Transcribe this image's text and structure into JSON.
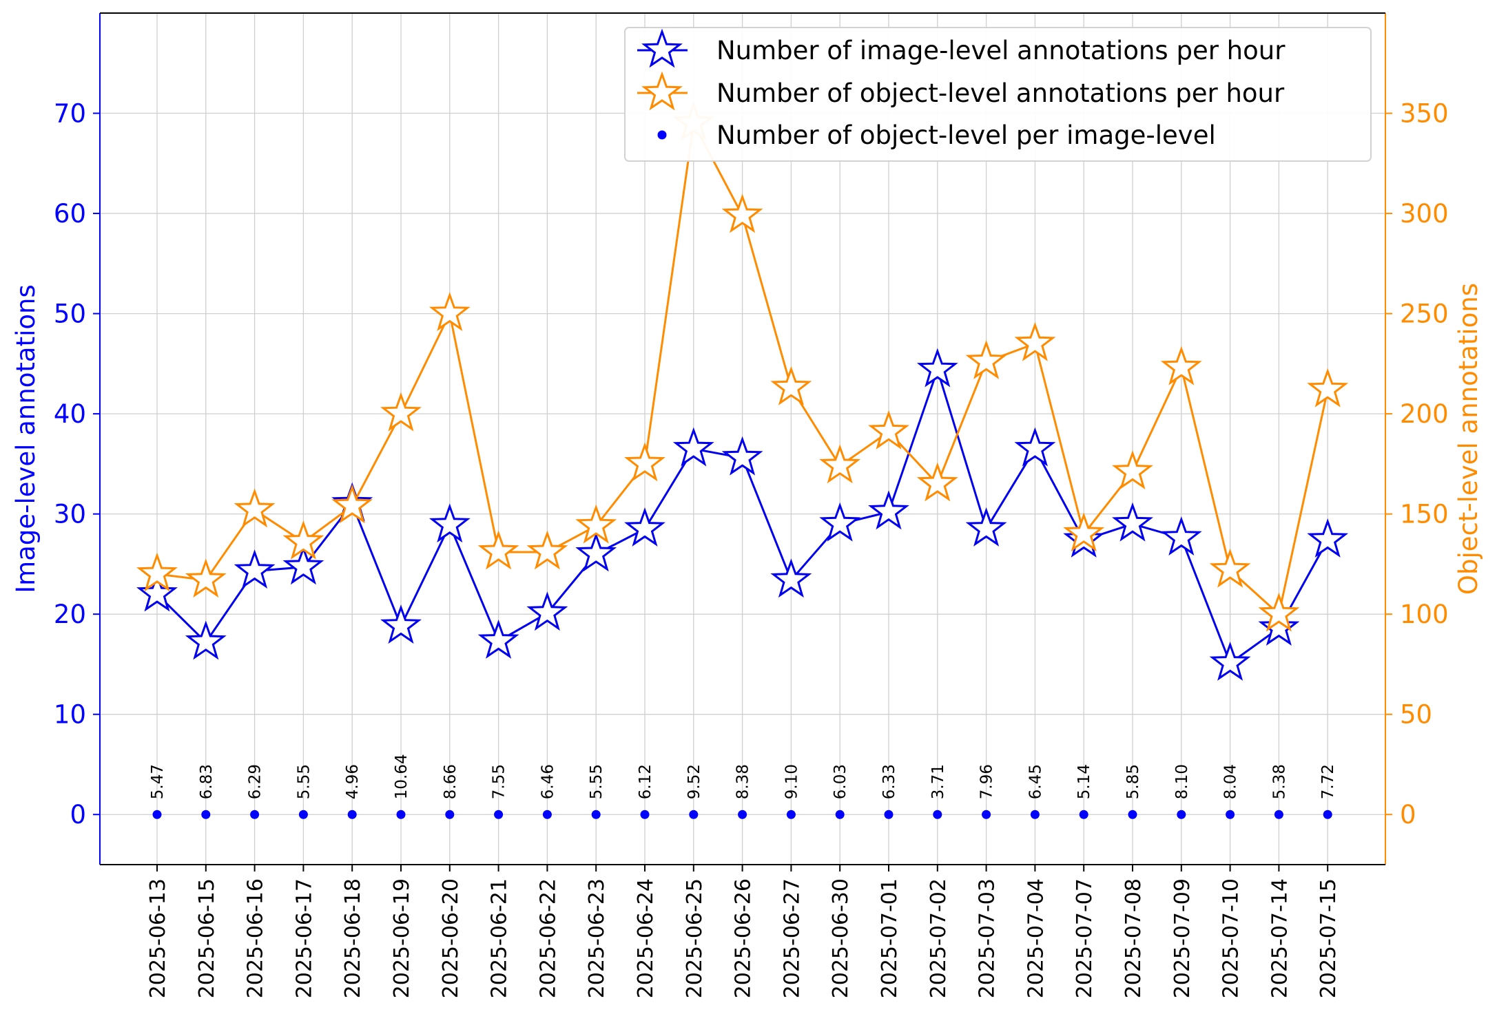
{
  "chart_data": {
    "type": "line",
    "xlabel": "",
    "ylabel_left": "Image-level annotations",
    "ylabel_right": "Object-level annotations",
    "ylim_left": [
      -5,
      80
    ],
    "ylim_right": [
      -25,
      400
    ],
    "yticks_left": [
      0,
      10,
      20,
      30,
      40,
      50,
      60,
      70
    ],
    "yticks_right": [
      0,
      50,
      100,
      150,
      200,
      250,
      300,
      350
    ],
    "grid": true,
    "legend_position": "top-right",
    "colors": {
      "left_axis": "#0000ff",
      "right_axis": "#ff8c00",
      "image_series": "#0000ee",
      "object_series": "#ff8c00",
      "ratio_points": "#0000ff"
    },
    "categories": [
      "2025-06-13",
      "2025-06-15",
      "2025-06-16",
      "2025-06-17",
      "2025-06-18",
      "2025-06-19",
      "2025-06-20",
      "2025-06-21",
      "2025-06-22",
      "2025-06-23",
      "2025-06-24",
      "2025-06-25",
      "2025-06-26",
      "2025-06-27",
      "2025-06-30",
      "2025-07-01",
      "2025-07-02",
      "2025-07-03",
      "2025-07-04",
      "2025-07-07",
      "2025-07-08",
      "2025-07-09",
      "2025-07-10",
      "2025-07-14",
      "2025-07-15"
    ],
    "series": [
      {
        "name": "Number of image-level annotations per hour",
        "axis": "left",
        "marker": "star",
        "values": [
          22,
          17.2,
          24.3,
          24.7,
          31,
          18.8,
          28.9,
          17.3,
          20.1,
          26,
          28.5,
          36.5,
          35.6,
          23.4,
          29,
          30.2,
          44.4,
          28.5,
          36.5,
          27.4,
          29,
          27.6,
          15.1,
          18.6,
          27.4
        ]
      },
      {
        "name": "Number of object-level annotations per hour",
        "axis": "right",
        "marker": "star",
        "values": [
          120,
          117,
          152,
          136,
          154,
          200,
          250,
          131,
          131,
          144,
          175,
          345,
          299,
          213,
          174,
          191,
          165,
          226,
          235,
          140,
          171,
          223,
          122,
          100,
          212
        ]
      },
      {
        "name": "Number of object-level per image-level",
        "axis": "left",
        "marker": "dot",
        "plotted_at": 0,
        "labels": [
          "5.47",
          "6.83",
          "6.29",
          "5.55",
          "4.96",
          "10.64",
          "8.66",
          "7.55",
          "6.46",
          "5.55",
          "6.12",
          "9.52",
          "8.38",
          "9.10",
          "6.03",
          "6.33",
          "3.71",
          "7.96",
          "6.45",
          "5.14",
          "5.85",
          "8.10",
          "8.04",
          "5.38",
          "7.72"
        ]
      }
    ]
  }
}
